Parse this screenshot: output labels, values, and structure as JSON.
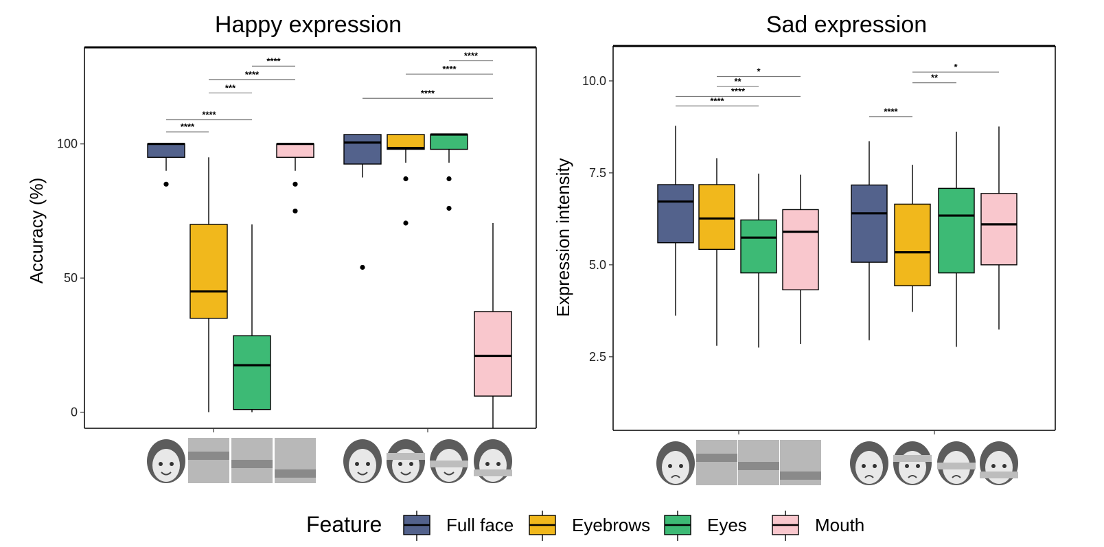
{
  "colors": {
    "Full face": "#53628C",
    "Eyebrows": "#F1B81C",
    "Eyes": "#3DBA75",
    "Mouth": "#F9C7CD"
  },
  "legend": {
    "title": "Feature",
    "items": [
      "Full face",
      "Eyebrows",
      "Eyes",
      "Mouth"
    ],
    "position": "bottom"
  },
  "chart_data": [
    {
      "type": "boxplot",
      "title": "Happy expression",
      "ylabel": "Accuracy (%)",
      "ylim": [
        -6,
        136
      ],
      "yticks": [
        0,
        50,
        100
      ],
      "groups": 2,
      "boxes": [
        {
          "group": 1,
          "feature": "Full face",
          "q1": 95,
          "median": 100,
          "q3": 100,
          "whisker_low": 90,
          "whisker_high": 100,
          "outliers": [
            85
          ]
        },
        {
          "group": 1,
          "feature": "Eyebrows",
          "q1": 35,
          "median": 45,
          "q3": 70,
          "whisker_low": 0,
          "whisker_high": 95,
          "outliers": []
        },
        {
          "group": 1,
          "feature": "Eyes",
          "q1": 1,
          "median": 17.5,
          "q3": 28.5,
          "whisker_low": 0,
          "whisker_high": 70,
          "outliers": []
        },
        {
          "group": 1,
          "feature": "Mouth",
          "q1": 95,
          "median": 100,
          "q3": 100,
          "whisker_low": 90,
          "whisker_high": 100,
          "outliers": [
            85,
            75
          ]
        },
        {
          "group": 2,
          "feature": "Full face",
          "q1": 92.5,
          "median": 100.5,
          "q3": 103.5,
          "whisker_low": 87.5,
          "whisker_high": 103.5,
          "outliers": [
            54
          ]
        },
        {
          "group": 2,
          "feature": "Eyebrows",
          "q1": 98,
          "median": 98.5,
          "q3": 103.5,
          "whisker_low": 93,
          "whisker_high": 103.5,
          "outliers": [
            87,
            70.5
          ]
        },
        {
          "group": 2,
          "feature": "Eyes",
          "q1": 98,
          "median": 103.5,
          "q3": 103.5,
          "whisker_low": 93,
          "whisker_high": 103.5,
          "outliers": [
            87,
            76
          ]
        },
        {
          "group": 2,
          "feature": "Mouth",
          "q1": 6,
          "median": 21,
          "q3": 37.5,
          "whisker_low": -6,
          "whisker_high": 70.5,
          "outliers": []
        }
      ],
      "significance": [
        {
          "group": 1,
          "from": 1,
          "to": 2,
          "y": 104.5,
          "label": "****"
        },
        {
          "group": 1,
          "from": 1,
          "to": 3,
          "y": 109,
          "label": "****"
        },
        {
          "group": 1,
          "from": 2,
          "to": 3,
          "y": 119,
          "label": "***"
        },
        {
          "group": 1,
          "from": 2,
          "to": 4,
          "y": 124,
          "label": "****"
        },
        {
          "group": 1,
          "from": 3,
          "to": 4,
          "y": 129,
          "label": "****"
        },
        {
          "group": 2,
          "from": 1,
          "to": 4,
          "y": 117,
          "label": "****"
        },
        {
          "group": 2,
          "from": 2,
          "to": 4,
          "y": 126,
          "label": "****"
        },
        {
          "group": 2,
          "from": 3,
          "to": 4,
          "y": 131,
          "label": "****"
        }
      ]
    },
    {
      "type": "boxplot",
      "title": "Sad expression",
      "ylabel": "Expression intensity",
      "ylim": [
        0.5,
        10.95
      ],
      "yticks": [
        2.5,
        5.0,
        7.5,
        10.0
      ],
      "ytick_labels": [
        "2.5",
        "5.0",
        "7.5",
        "10.0"
      ],
      "groups": 2,
      "boxes": [
        {
          "group": 1,
          "feature": "Full face",
          "q1": 5.6,
          "median": 6.72,
          "q3": 7.18,
          "whisker_low": 3.62,
          "whisker_high": 8.78,
          "outliers": []
        },
        {
          "group": 1,
          "feature": "Eyebrows",
          "q1": 5.42,
          "median": 6.26,
          "q3": 7.18,
          "whisker_low": 2.8,
          "whisker_high": 7.9,
          "outliers": []
        },
        {
          "group": 1,
          "feature": "Eyes",
          "q1": 4.78,
          "median": 5.74,
          "q3": 6.22,
          "whisker_low": 2.75,
          "whisker_high": 7.48,
          "outliers": []
        },
        {
          "group": 1,
          "feature": "Mouth",
          "q1": 4.32,
          "median": 5.9,
          "q3": 6.5,
          "whisker_low": 2.85,
          "whisker_high": 7.45,
          "outliers": []
        },
        {
          "group": 2,
          "feature": "Full face",
          "q1": 5.07,
          "median": 6.4,
          "q3": 7.17,
          "whisker_low": 2.95,
          "whisker_high": 8.36,
          "outliers": []
        },
        {
          "group": 2,
          "feature": "Eyebrows",
          "q1": 4.43,
          "median": 5.34,
          "q3": 6.65,
          "whisker_low": 3.72,
          "whisker_high": 7.72,
          "outliers": []
        },
        {
          "group": 2,
          "feature": "Eyes",
          "q1": 4.78,
          "median": 6.34,
          "q3": 7.08,
          "whisker_low": 2.77,
          "whisker_high": 8.62,
          "outliers": []
        },
        {
          "group": 2,
          "feature": "Mouth",
          "q1": 5.0,
          "median": 6.1,
          "q3": 6.94,
          "whisker_low": 3.24,
          "whisker_high": 8.76,
          "outliers": []
        }
      ],
      "significance": [
        {
          "group": 1,
          "from": 1,
          "to": 3,
          "y": 9.32,
          "label": "****"
        },
        {
          "group": 1,
          "from": 1,
          "to": 4,
          "y": 9.58,
          "label": "****"
        },
        {
          "group": 1,
          "from": 2,
          "to": 3,
          "y": 9.85,
          "label": "**"
        },
        {
          "group": 1,
          "from": 2,
          "to": 4,
          "y": 10.12,
          "label": "*"
        },
        {
          "group": 2,
          "from": 1,
          "to": 2,
          "y": 9.03,
          "label": "****"
        },
        {
          "group": 2,
          "from": 2,
          "to": 3,
          "y": 9.95,
          "label": "**"
        },
        {
          "group": 2,
          "from": 2,
          "to": 4,
          "y": 10.24,
          "label": "*"
        }
      ]
    }
  ]
}
